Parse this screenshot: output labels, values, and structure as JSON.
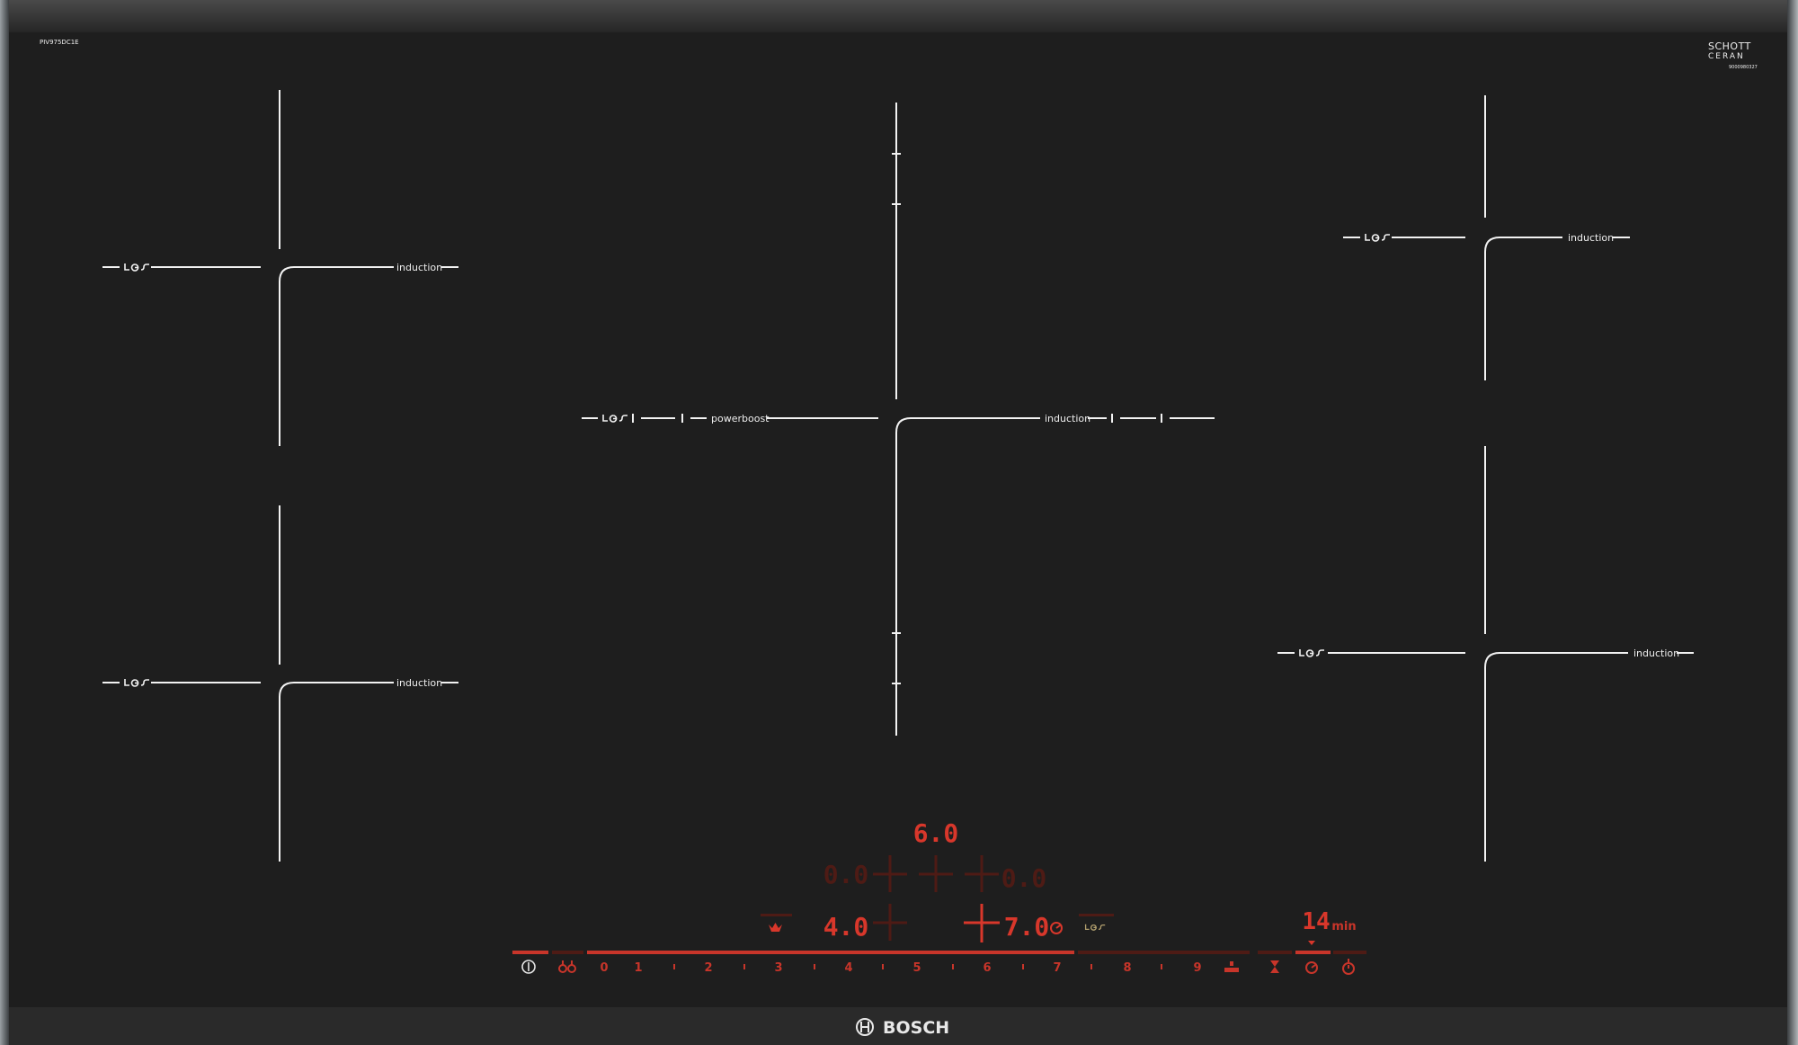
{
  "frame": {
    "model": "PIV975DC1E",
    "glass_brand_line1": "SCHOTT",
    "glass_brand_line2": "CERAN",
    "glass_serial": "9000980327",
    "brand": "BOSCH"
  },
  "zones": {
    "top_left": {
      "label": "induction",
      "icon": "leo-squiggle-icon"
    },
    "bottom_left": {
      "label": "induction",
      "icon": "leo-squiggle-icon"
    },
    "center": {
      "left_label": "powerboost",
      "right_label": "induction",
      "icon": "leo-squiggle-icon"
    },
    "top_right": {
      "label": "induction",
      "icon": "leo-squiggle-icon"
    },
    "bottom_right": {
      "label": "induction",
      "icon": "leo-squiggle-icon"
    }
  },
  "displays": {
    "top": "6.0",
    "middle_left": "0.0",
    "middle_right": "0.0",
    "bottom_left": "4.0",
    "bottom_right": "7.0",
    "timer_value": "14",
    "timer_unit": "min"
  },
  "controls": {
    "power_icon": "power-icon",
    "boost_icon": "powerboost-icon",
    "levels": [
      "0",
      "1",
      "2",
      "3",
      "4",
      "5",
      "6",
      "7",
      "8",
      "9"
    ],
    "selected_level": 7,
    "keep_warm_icon": "pot-icon",
    "right_icons": [
      "hourglass-icon",
      "timer-icon",
      "stopwatch-icon"
    ]
  },
  "colors": {
    "glass": "#1e1e1e",
    "display_active": "#d8372b",
    "display_inactive": "#4e1b15",
    "markings": "#f2f2f2"
  }
}
